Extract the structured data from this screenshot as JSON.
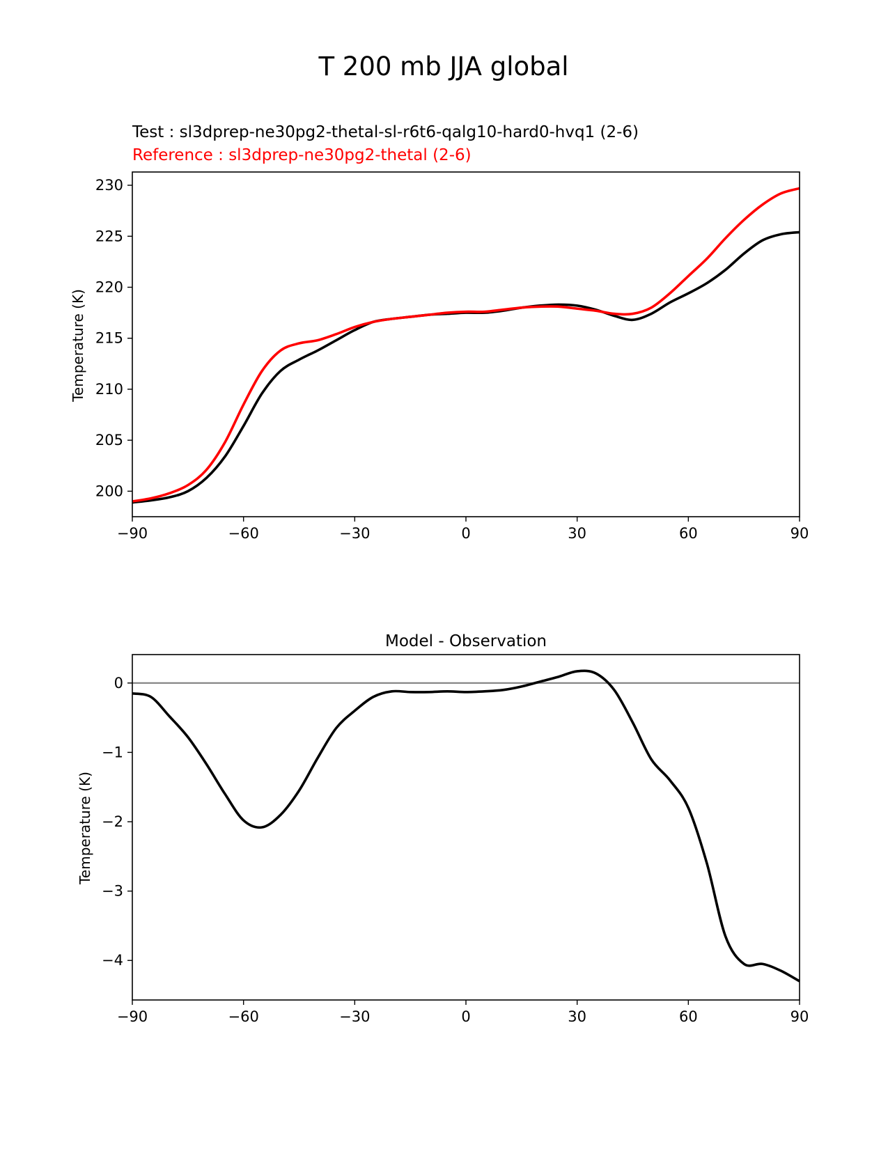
{
  "figure_title": "T 200 mb JJA global",
  "colors": {
    "test": "#000000",
    "reference": "#ff0000",
    "zero_line": "#808080"
  },
  "chart_data": [
    {
      "type": "line",
      "test_label": "Test : sl3dprep-ne30pg2-thetal-sl-r6t6-qalg10-hard0-hvq1 (2-6)",
      "reference_label": "Reference : sl3dprep-ne30pg2-thetal (2-6)",
      "title": "",
      "xlabel": "",
      "ylabel": "Temperature (K)",
      "xlim": [
        -90,
        90
      ],
      "ylim": [
        197.5,
        231.3
      ],
      "xticks": [
        "−90",
        "−60",
        "−30",
        "0",
        "30",
        "60",
        "90"
      ],
      "yticks": [
        "200",
        "205",
        "210",
        "215",
        "220",
        "225",
        "230"
      ],
      "x": [
        -90,
        -85,
        -80,
        -75,
        -70,
        -65,
        -60,
        -55,
        -50,
        -45,
        -40,
        -35,
        -30,
        -25,
        -20,
        -15,
        -10,
        -5,
        0,
        5,
        10,
        15,
        20,
        25,
        30,
        35,
        40,
        45,
        50,
        55,
        60,
        65,
        70,
        75,
        80,
        85,
        90
      ],
      "series": [
        {
          "name": "Test",
          "values": [
            198.9,
            199.1,
            199.4,
            200.0,
            201.3,
            203.4,
            206.4,
            209.6,
            211.8,
            212.9,
            213.8,
            214.8,
            215.8,
            216.6,
            216.9,
            217.1,
            217.3,
            217.4,
            217.5,
            217.5,
            217.7,
            218.0,
            218.2,
            218.3,
            218.2,
            217.8,
            217.2,
            216.8,
            217.4,
            218.5,
            219.4,
            220.4,
            221.7,
            223.3,
            224.6,
            225.2,
            225.4
          ]
        },
        {
          "name": "Reference",
          "values": [
            199.0,
            199.3,
            199.8,
            200.6,
            202.1,
            204.8,
            208.5,
            211.8,
            213.8,
            214.5,
            214.8,
            215.4,
            216.1,
            216.6,
            216.9,
            217.1,
            217.3,
            217.5,
            217.6,
            217.6,
            217.8,
            218.0,
            218.1,
            218.1,
            217.9,
            217.7,
            217.4,
            217.4,
            218.0,
            219.4,
            221.1,
            222.8,
            224.8,
            226.6,
            228.1,
            229.2,
            229.7
          ]
        }
      ]
    },
    {
      "type": "line",
      "title": "Model - Observation",
      "xlabel": "",
      "ylabel": "Temperature (K)",
      "xlim": [
        -90,
        90
      ],
      "ylim": [
        -4.57,
        0.41
      ],
      "xticks": [
        "−90",
        "−60",
        "−30",
        "0",
        "30",
        "60",
        "90"
      ],
      "yticks": [
        "0",
        "−1",
        "−2",
        "−3",
        "−4"
      ],
      "zero_line": 0,
      "x": [
        -90,
        -85,
        -80,
        -75,
        -70,
        -65,
        -60,
        -55,
        -50,
        -45,
        -40,
        -35,
        -30,
        -25,
        -20,
        -15,
        -10,
        -5,
        0,
        5,
        10,
        15,
        20,
        25,
        30,
        35,
        40,
        45,
        50,
        55,
        60,
        65,
        70,
        75,
        80,
        85,
        90
      ],
      "series": [
        {
          "name": "",
          "values": [
            -0.15,
            -0.2,
            -0.48,
            -0.78,
            -1.17,
            -1.6,
            -1.98,
            -2.08,
            -1.9,
            -1.55,
            -1.08,
            -0.65,
            -0.4,
            -0.2,
            -0.12,
            -0.13,
            -0.13,
            -0.12,
            -0.13,
            -0.12,
            -0.1,
            -0.05,
            0.02,
            0.09,
            0.17,
            0.14,
            -0.1,
            -0.57,
            -1.1,
            -1.4,
            -1.8,
            -2.6,
            -3.65,
            -4.05,
            -4.05,
            -4.15,
            -4.3
          ]
        }
      ]
    }
  ]
}
